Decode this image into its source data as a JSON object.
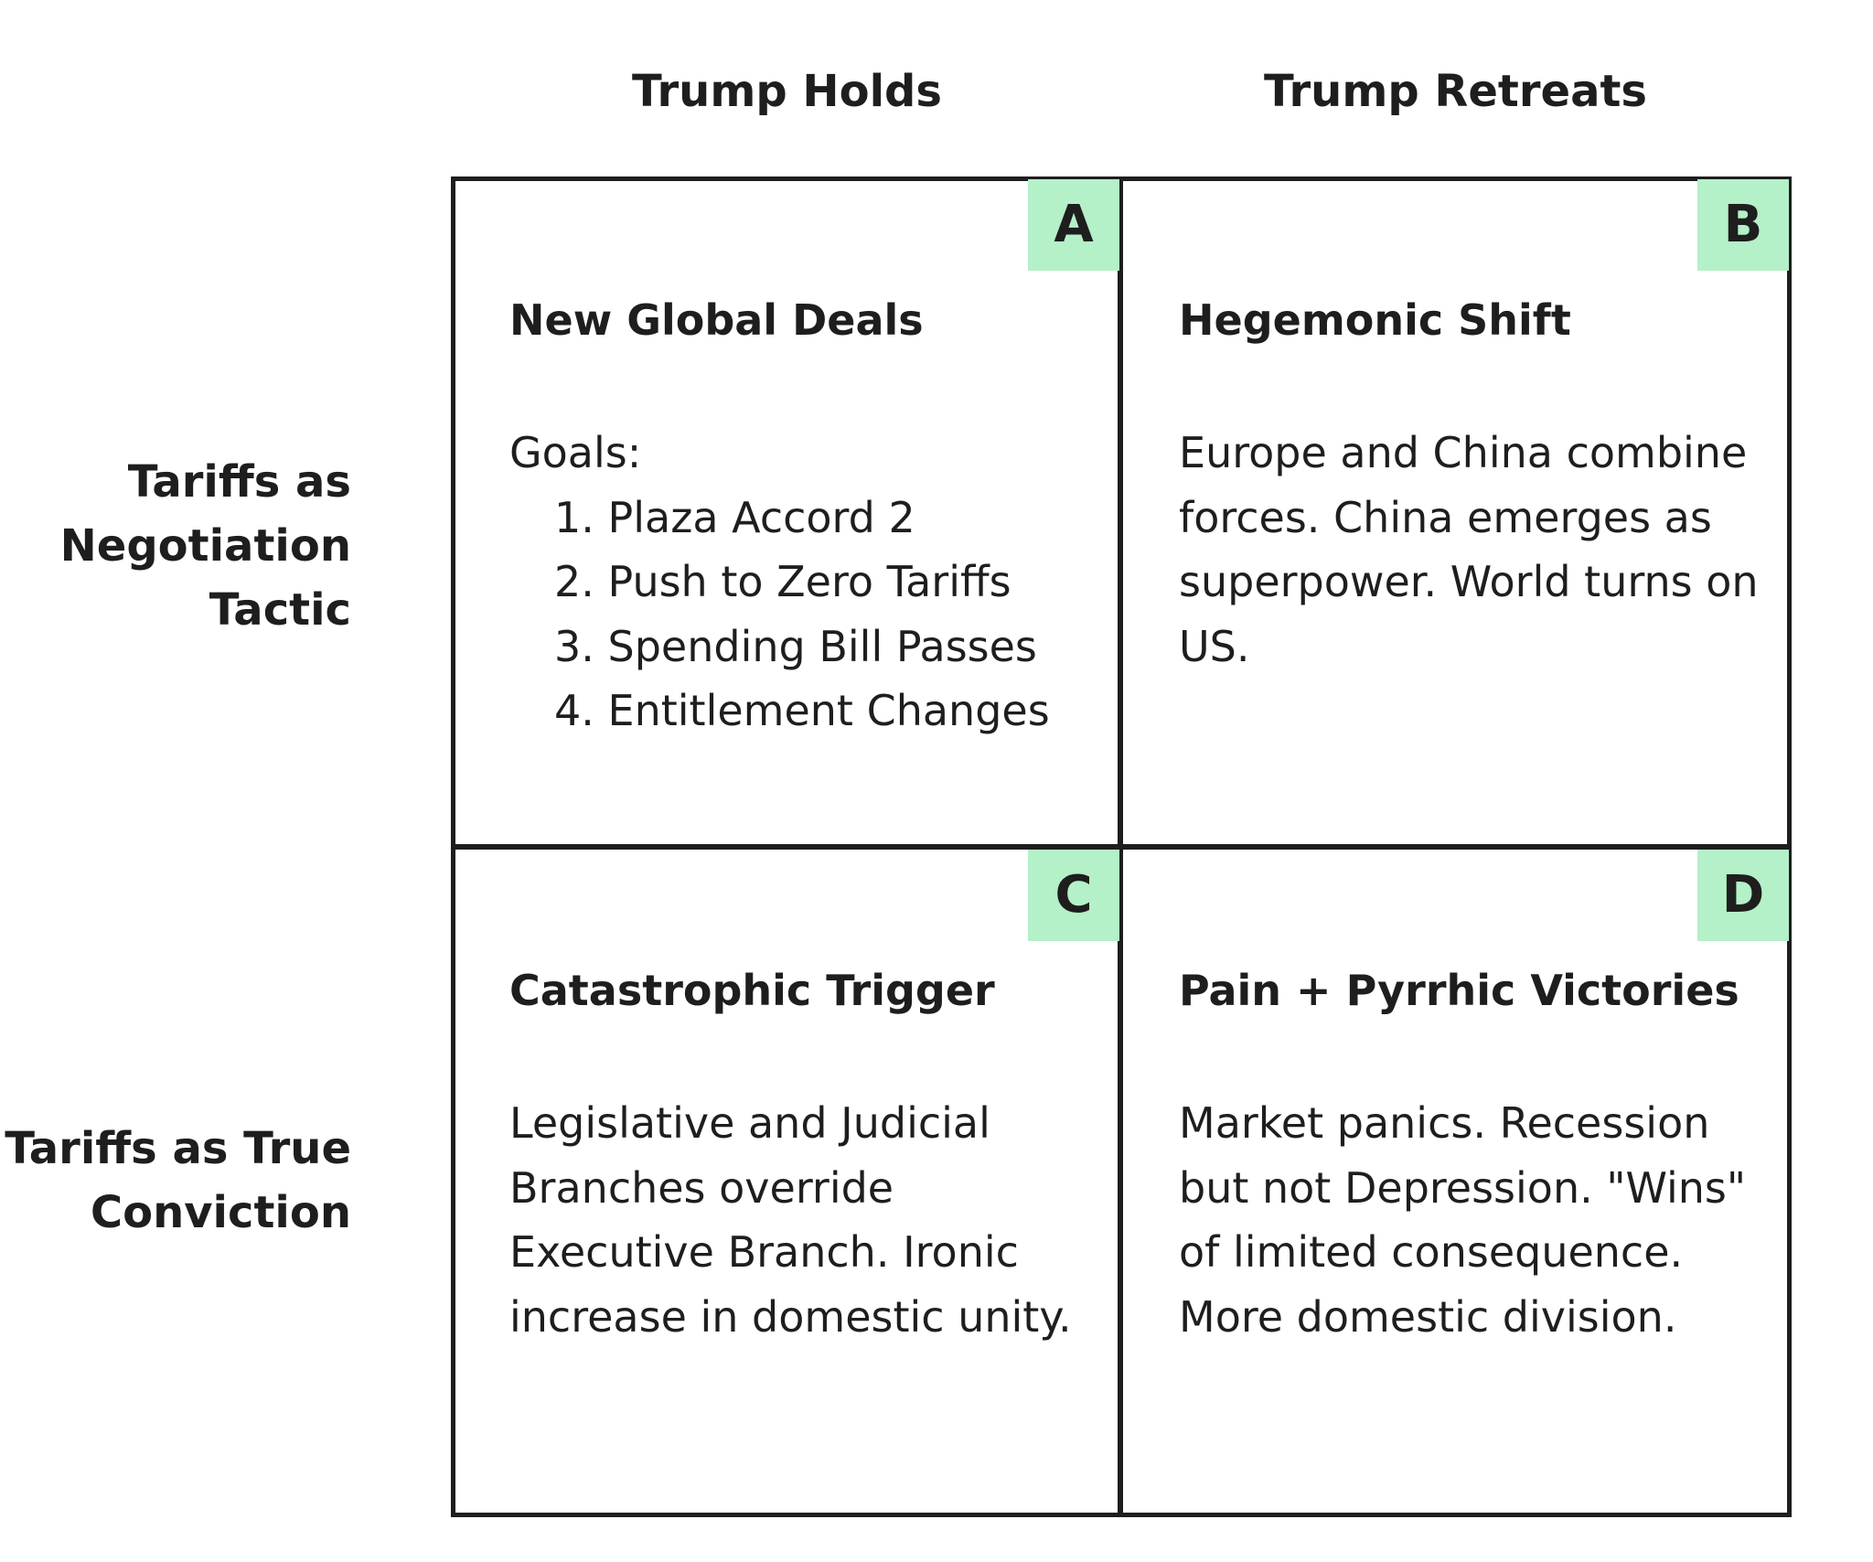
{
  "columns": [
    "Trump Holds",
    "Trump Retreats"
  ],
  "rows": [
    "Tariffs as Negotiation Tactic",
    "Tariffs as True Conviction"
  ],
  "quadrants": [
    {
      "badge": "A",
      "title": "New Global Deals",
      "intro": "Goals:",
      "items": [
        "1. Plaza Accord 2",
        "2. Push to Zero Tariffs",
        "3. Spending Bill Passes",
        "4. Entitlement Changes"
      ]
    },
    {
      "badge": "B",
      "title": "Hegemonic Shift",
      "body": "Europe and China combine forces. China emerges as superpower. World turns on US."
    },
    {
      "badge": "C",
      "title": "Catastrophic Trigger",
      "body": "Legislative and Judicial Branches override Executive Branch. Ironic increase in domestic unity."
    },
    {
      "badge": "D",
      "title": "Pain + Pyrrhic Victories",
      "body": "Market panics. Recession but not Depression. \"Wins\" of limited consequence. More domestic division."
    }
  ],
  "colors": {
    "badge_bg": "#b4f0c8",
    "grid_line": "#1e1e1e",
    "text": "#1e1e1e"
  }
}
